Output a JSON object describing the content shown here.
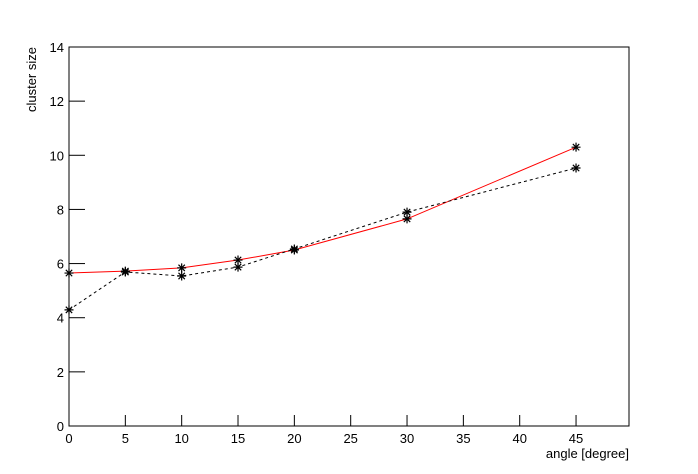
{
  "chart_data": {
    "type": "line",
    "x_label": "angle [degree]",
    "y_label": "cluster size",
    "x": [
      0,
      5,
      10,
      15,
      20,
      30,
      45
    ],
    "series": [
      {
        "color": "#ff0000",
        "dash": false,
        "values": [
          5.65,
          5.72,
          5.84,
          6.13,
          6.5,
          7.65,
          10.3
        ]
      },
      {
        "color": "#000000",
        "dash": true,
        "values": [
          4.29,
          5.69,
          5.54,
          5.87,
          6.54,
          7.9,
          9.53
        ]
      }
    ],
    "marker_color": "#000000",
    "xlim": [
      0,
      49.7
    ],
    "xticks": [
      0,
      5,
      10,
      15,
      20,
      25,
      30,
      35,
      40,
      45
    ],
    "ylim": [
      0,
      14
    ],
    "yticks": [
      0,
      2,
      4,
      6,
      8,
      10,
      12,
      14
    ]
  }
}
